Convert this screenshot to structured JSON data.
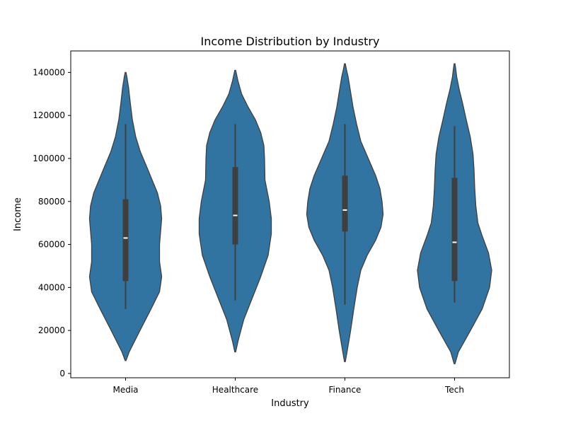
{
  "chart_data": {
    "type": "violin",
    "title": "Income Distribution by Industry",
    "xlabel": "Industry",
    "ylabel": "Income",
    "categories": [
      "Media",
      "Healthcare",
      "Finance",
      "Tech"
    ],
    "ylim": [
      -2000,
      150000
    ],
    "yticks": [
      0,
      20000,
      40000,
      60000,
      80000,
      100000,
      120000,
      140000
    ],
    "ytick_labels": [
      "0",
      "20000",
      "40000",
      "60000",
      "80000",
      "100000",
      "120000",
      "140000"
    ],
    "grid": false,
    "fill_color": "#3274a1",
    "box_color": "#3f3f3f",
    "series": [
      {
        "category": "Media",
        "range": [
          6000,
          140000
        ],
        "whisker": [
          30000,
          116000
        ],
        "quartiles": [
          43000,
          81000
        ],
        "median": 63000,
        "density": [
          [
            6000,
            0.2
          ],
          [
            10000,
            1.7
          ],
          [
            20000,
            6.8
          ],
          [
            30000,
            12
          ],
          [
            38000,
            16
          ],
          [
            45000,
            17
          ],
          [
            52000,
            16
          ],
          [
            60000,
            16
          ],
          [
            66000,
            16.5
          ],
          [
            72000,
            17
          ],
          [
            78000,
            16.5
          ],
          [
            84000,
            15
          ],
          [
            90000,
            12.5
          ],
          [
            96000,
            10
          ],
          [
            103000,
            7
          ],
          [
            110000,
            4.8
          ],
          [
            118000,
            3.2
          ],
          [
            126000,
            2.2
          ],
          [
            133000,
            1.4
          ],
          [
            138000,
            0.6
          ],
          [
            140000,
            0.2
          ]
        ]
      },
      {
        "category": "Healthcare",
        "range": [
          10000,
          141000
        ],
        "whisker": [
          34000,
          116000
        ],
        "quartiles": [
          60000,
          96000
        ],
        "median": 73500,
        "density": [
          [
            10000,
            0.2
          ],
          [
            15000,
            1.3
          ],
          [
            25000,
            4
          ],
          [
            35000,
            8
          ],
          [
            45000,
            12
          ],
          [
            55000,
            15.5
          ],
          [
            65000,
            17
          ],
          [
            72000,
            17
          ],
          [
            80000,
            16
          ],
          [
            90000,
            14
          ],
          [
            100000,
            13.8
          ],
          [
            106000,
            13.5
          ],
          [
            112000,
            12
          ],
          [
            118000,
            9.5
          ],
          [
            124000,
            6
          ],
          [
            130000,
            3
          ],
          [
            136000,
            1.3
          ],
          [
            141000,
            0.2
          ]
        ]
      },
      {
        "category": "Finance",
        "range": [
          5500,
          144000
        ],
        "whisker": [
          32000,
          116000
        ],
        "quartiles": [
          66000,
          92000
        ],
        "median": 76000,
        "density": [
          [
            5500,
            0.2
          ],
          [
            10000,
            1
          ],
          [
            20000,
            2.7
          ],
          [
            30000,
            4.2
          ],
          [
            40000,
            5.8
          ],
          [
            48000,
            7.5
          ],
          [
            55000,
            10.5
          ],
          [
            62000,
            14.5
          ],
          [
            68000,
            17
          ],
          [
            74000,
            18
          ],
          [
            80000,
            17.5
          ],
          [
            86000,
            16.5
          ],
          [
            92000,
            14.5
          ],
          [
            100000,
            11
          ],
          [
            108000,
            7.5
          ],
          [
            116000,
            5.5
          ],
          [
            124000,
            3.8
          ],
          [
            132000,
            2.5
          ],
          [
            138000,
            1.5
          ],
          [
            141000,
            0.8
          ],
          [
            144000,
            0.2
          ]
        ]
      },
      {
        "category": "Tech",
        "range": [
          4500,
          144000
        ],
        "whisker": [
          33000,
          115000
        ],
        "quartiles": [
          43000,
          91000
        ],
        "median": 61000,
        "density": [
          [
            4500,
            0.2
          ],
          [
            10000,
            1.8
          ],
          [
            20000,
            7.5
          ],
          [
            30000,
            13
          ],
          [
            40000,
            16.5
          ],
          [
            48000,
            17.5
          ],
          [
            56000,
            16
          ],
          [
            64000,
            13
          ],
          [
            70000,
            11
          ],
          [
            78000,
            10
          ],
          [
            86000,
            9.5
          ],
          [
            94000,
            9.2
          ],
          [
            102000,
            8.7
          ],
          [
            110000,
            7.4
          ],
          [
            118000,
            5.5
          ],
          [
            126000,
            3.7
          ],
          [
            132000,
            2.2
          ],
          [
            138000,
            1
          ],
          [
            142000,
            0.5
          ],
          [
            144000,
            0.2
          ]
        ]
      }
    ]
  }
}
